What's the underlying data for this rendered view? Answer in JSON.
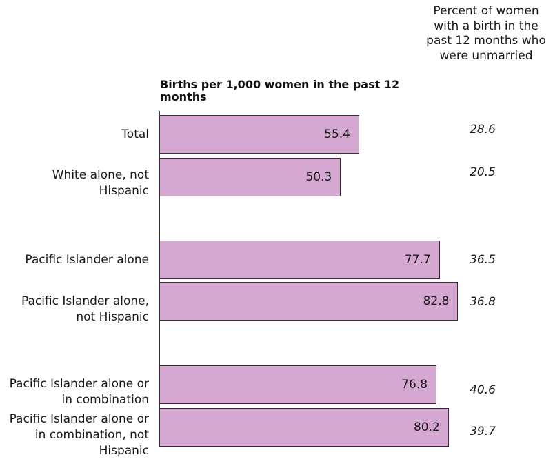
{
  "chart_data": {
    "type": "bar",
    "orientation": "horizontal",
    "title": "Births per 1,000 women in the past 12 months",
    "secondary_column_header": "Percent of women with a birth in the past 12 months who were unmarried",
    "categories": [
      "Total",
      "White alone, not Hispanic",
      "Pacific Islander alone",
      "Pacific Islander alone, not Hispanic",
      "Pacific Islander alone or in combination",
      "Pacific Islander alone or in combination, not Hispanic"
    ],
    "values": [
      55.4,
      50.3,
      77.7,
      82.8,
      76.8,
      80.2
    ],
    "value_labels": [
      "55.4",
      "50.3",
      "77.7",
      "82.8",
      "76.8",
      "80.2"
    ],
    "secondary_values": [
      "28.6",
      "20.5",
      "36.5",
      "36.8",
      "40.6",
      "39.7"
    ],
    "xlim": [
      0,
      100
    ],
    "grid": false,
    "bar_color": "#d4a8d0"
  }
}
